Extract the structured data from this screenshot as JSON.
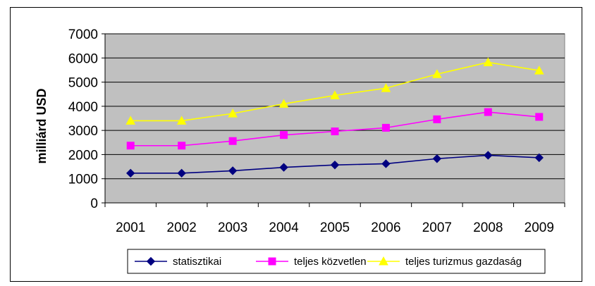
{
  "chart_data": {
    "type": "line",
    "title": "",
    "xlabel": "",
    "ylabel": "milliárd USD",
    "ylim": [
      0,
      7000
    ],
    "yticks": [
      0,
      1000,
      2000,
      3000,
      4000,
      5000,
      6000,
      7000
    ],
    "grid": "horizontal",
    "legend_position": "bottom",
    "plot_background": "#c0c0c0",
    "categories": [
      "2001",
      "2002",
      "2003",
      "2004",
      "2005",
      "2006",
      "2007",
      "2008",
      "2009"
    ],
    "series": [
      {
        "name": "statisztikai",
        "color": "#000080",
        "marker": "diamond",
        "values": [
          1230,
          1230,
          1330,
          1470,
          1570,
          1620,
          1830,
          1970,
          1870
        ]
      },
      {
        "name": "teljes közvetlen",
        "color": "#ff00ff",
        "marker": "square",
        "values": [
          2370,
          2370,
          2560,
          2810,
          2960,
          3110,
          3460,
          3760,
          3560
        ]
      },
      {
        "name": "teljes turizmus gazdaság",
        "color": "#ffff00",
        "marker": "triangle",
        "values": [
          3400,
          3400,
          3700,
          4100,
          4450,
          4750,
          5330,
          5820,
          5480
        ]
      }
    ]
  }
}
